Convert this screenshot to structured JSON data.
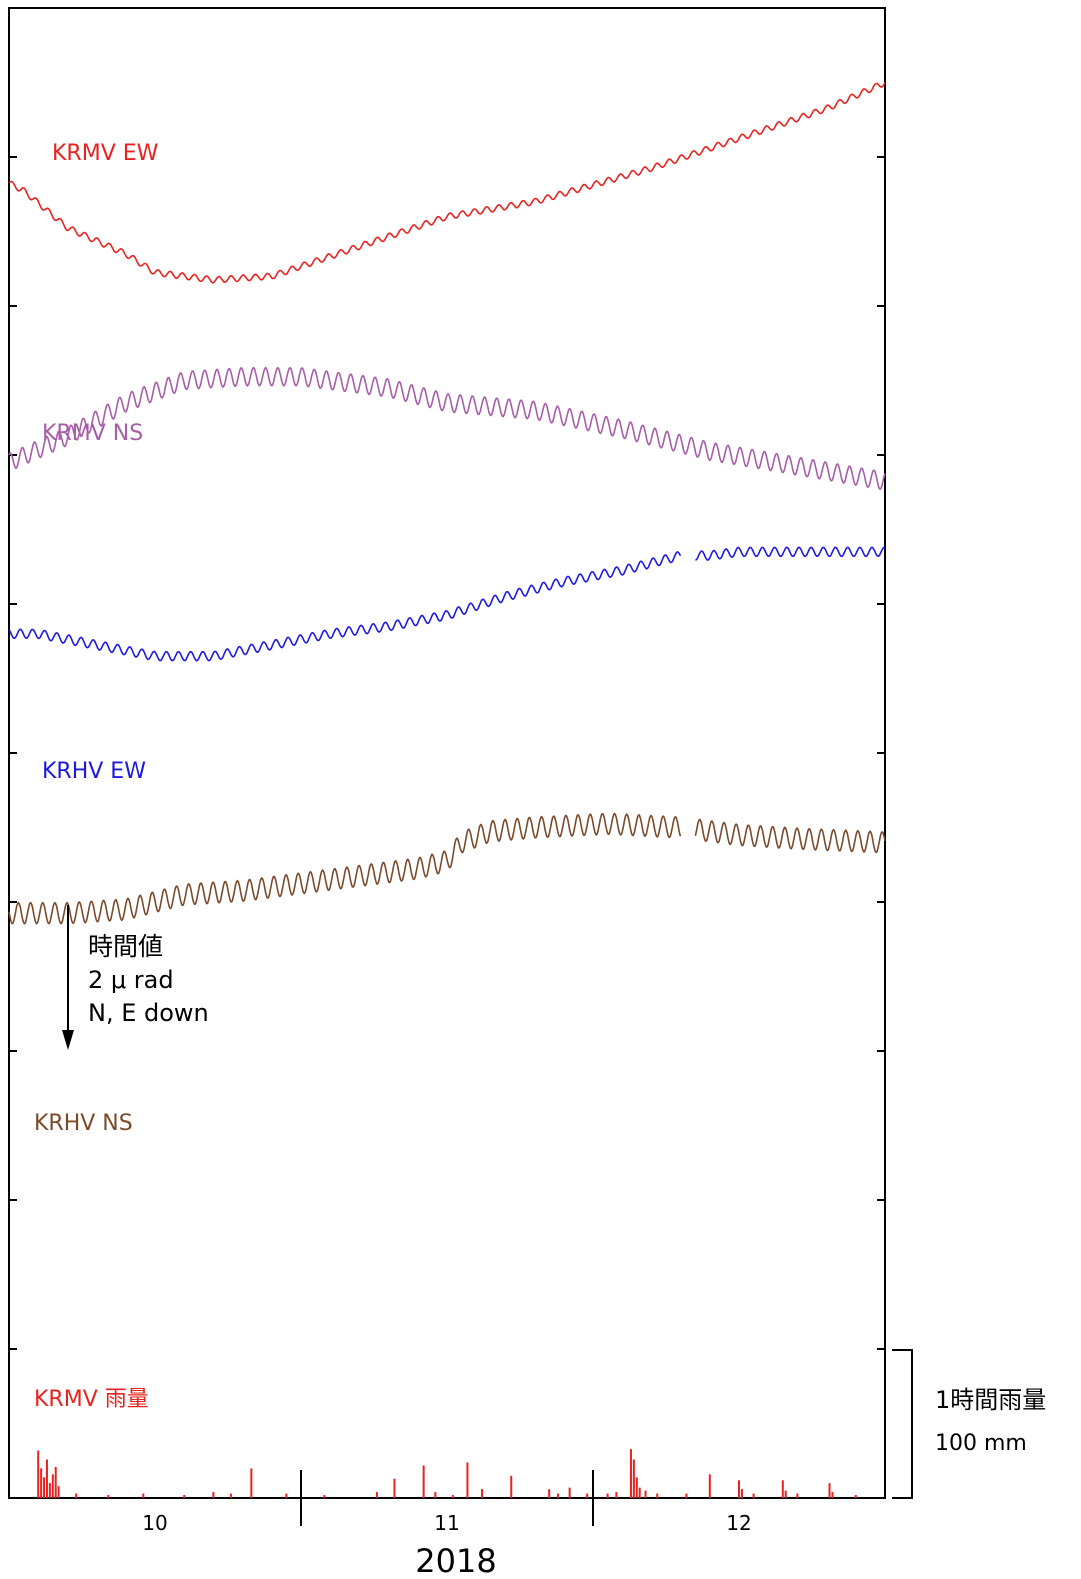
{
  "chart_data": {
    "type": "line",
    "year_label": "2018",
    "x_ticks": [
      "10",
      "11",
      "12"
    ],
    "x_range": [
      9.5,
      12.5
    ],
    "series": [
      {
        "name": "KRMV EW",
        "color": "#e8231f",
        "points": [
          [
            9.5,
            -2.35
          ],
          [
            9.55,
            -2.45
          ],
          [
            9.7,
            -2.95
          ],
          [
            9.9,
            -3.3
          ],
          [
            10.0,
            -3.55
          ],
          [
            10.2,
            -3.65
          ],
          [
            10.4,
            -3.6
          ],
          [
            10.7,
            -3.2
          ],
          [
            11.0,
            -2.8
          ],
          [
            11.3,
            -2.6
          ],
          [
            11.7,
            -2.15
          ],
          [
            12.0,
            -1.75
          ],
          [
            12.3,
            -1.35
          ],
          [
            12.5,
            -1.0
          ]
        ],
        "tide_amp": 0.04
      },
      {
        "name": "KRMV NS",
        "color": "#a75ea9",
        "points": [
          [
            9.5,
            -6.1
          ],
          [
            9.7,
            -5.75
          ],
          [
            9.9,
            -5.3
          ],
          [
            10.1,
            -5.0
          ],
          [
            10.3,
            -4.95
          ],
          [
            10.5,
            -4.95
          ],
          [
            10.8,
            -5.1
          ],
          [
            11.0,
            -5.3
          ],
          [
            11.3,
            -5.4
          ],
          [
            11.6,
            -5.65
          ],
          [
            11.9,
            -5.95
          ],
          [
            12.2,
            -6.15
          ],
          [
            12.5,
            -6.35
          ]
        ],
        "tide_amp": 0.12
      },
      {
        "name": "KRHV EW",
        "color": "#1d1ae0",
        "points": [
          [
            9.5,
            -8.4
          ],
          [
            9.6,
            -8.4
          ],
          [
            9.8,
            -8.55
          ],
          [
            10.0,
            -8.7
          ],
          [
            10.2,
            -8.7
          ],
          [
            10.4,
            -8.55
          ],
          [
            10.6,
            -8.4
          ],
          [
            10.8,
            -8.3
          ],
          [
            11.0,
            -8.15
          ],
          [
            11.2,
            -7.9
          ],
          [
            11.4,
            -7.7
          ],
          [
            11.6,
            -7.55
          ],
          [
            11.8,
            -7.35
          ],
          [
            11.9,
            -7.35
          ],
          [
            12.0,
            -7.3
          ],
          [
            12.2,
            -7.3
          ],
          [
            12.5,
            -7.3
          ]
        ],
        "gap": [
          11.8,
          11.85
        ],
        "tide_amp": 0.06
      },
      {
        "name": "KRHV NS",
        "color": "#7a4a2a",
        "points": [
          [
            9.5,
            -12.15
          ],
          [
            9.7,
            -12.15
          ],
          [
            9.9,
            -12.1
          ],
          [
            10.1,
            -11.9
          ],
          [
            10.3,
            -11.85
          ],
          [
            10.5,
            -11.75
          ],
          [
            10.7,
            -11.65
          ],
          [
            10.9,
            -11.55
          ],
          [
            11.0,
            -11.45
          ],
          [
            11.05,
            -11.2
          ],
          [
            11.15,
            -11.05
          ],
          [
            11.3,
            -11.0
          ],
          [
            11.55,
            -10.95
          ],
          [
            11.8,
            -11.0
          ],
          [
            12.0,
            -11.1
          ],
          [
            12.2,
            -11.15
          ],
          [
            12.5,
            -11.2
          ]
        ],
        "gap": [
          11.8,
          11.85
        ],
        "tide_amp": 0.14
      }
    ],
    "rain": {
      "name": "KRMV 雨量",
      "color": "#e8231f",
      "unit": "mm",
      "bars": [
        [
          9.6,
          32
        ],
        [
          9.61,
          20
        ],
        [
          9.62,
          14
        ],
        [
          9.63,
          26
        ],
        [
          9.64,
          10
        ],
        [
          9.65,
          16
        ],
        [
          9.66,
          21
        ],
        [
          9.67,
          8
        ],
        [
          9.73,
          3
        ],
        [
          9.84,
          2
        ],
        [
          9.96,
          3
        ],
        [
          10.1,
          2
        ],
        [
          10.2,
          4
        ],
        [
          10.26,
          3
        ],
        [
          10.33,
          20
        ],
        [
          10.45,
          3
        ],
        [
          10.58,
          2
        ],
        [
          10.76,
          4
        ],
        [
          10.82,
          13
        ],
        [
          10.92,
          22
        ],
        [
          10.96,
          4
        ],
        [
          11.02,
          2
        ],
        [
          11.07,
          24
        ],
        [
          11.12,
          6
        ],
        [
          11.22,
          15
        ],
        [
          11.35,
          6
        ],
        [
          11.38,
          3
        ],
        [
          11.42,
          7
        ],
        [
          11.48,
          3
        ],
        [
          11.55,
          3
        ],
        [
          11.58,
          4
        ],
        [
          11.63,
          33
        ],
        [
          11.64,
          26
        ],
        [
          11.65,
          14
        ],
        [
          11.66,
          7
        ],
        [
          11.68,
          5
        ],
        [
          11.72,
          3
        ],
        [
          11.82,
          3
        ],
        [
          11.9,
          16
        ],
        [
          12.0,
          12
        ],
        [
          12.01,
          6
        ],
        [
          12.05,
          3
        ],
        [
          12.15,
          12
        ],
        [
          12.16,
          5
        ],
        [
          12.2,
          3
        ],
        [
          12.31,
          10
        ],
        [
          12.32,
          4
        ],
        [
          12.4,
          2
        ]
      ]
    },
    "scale": {
      "tilt_label": "時間値",
      "tilt_value": "2 μ rad",
      "tilt_direction": "N, E down",
      "rain_label": "1時間雨量",
      "rain_value": "100 mm"
    }
  }
}
